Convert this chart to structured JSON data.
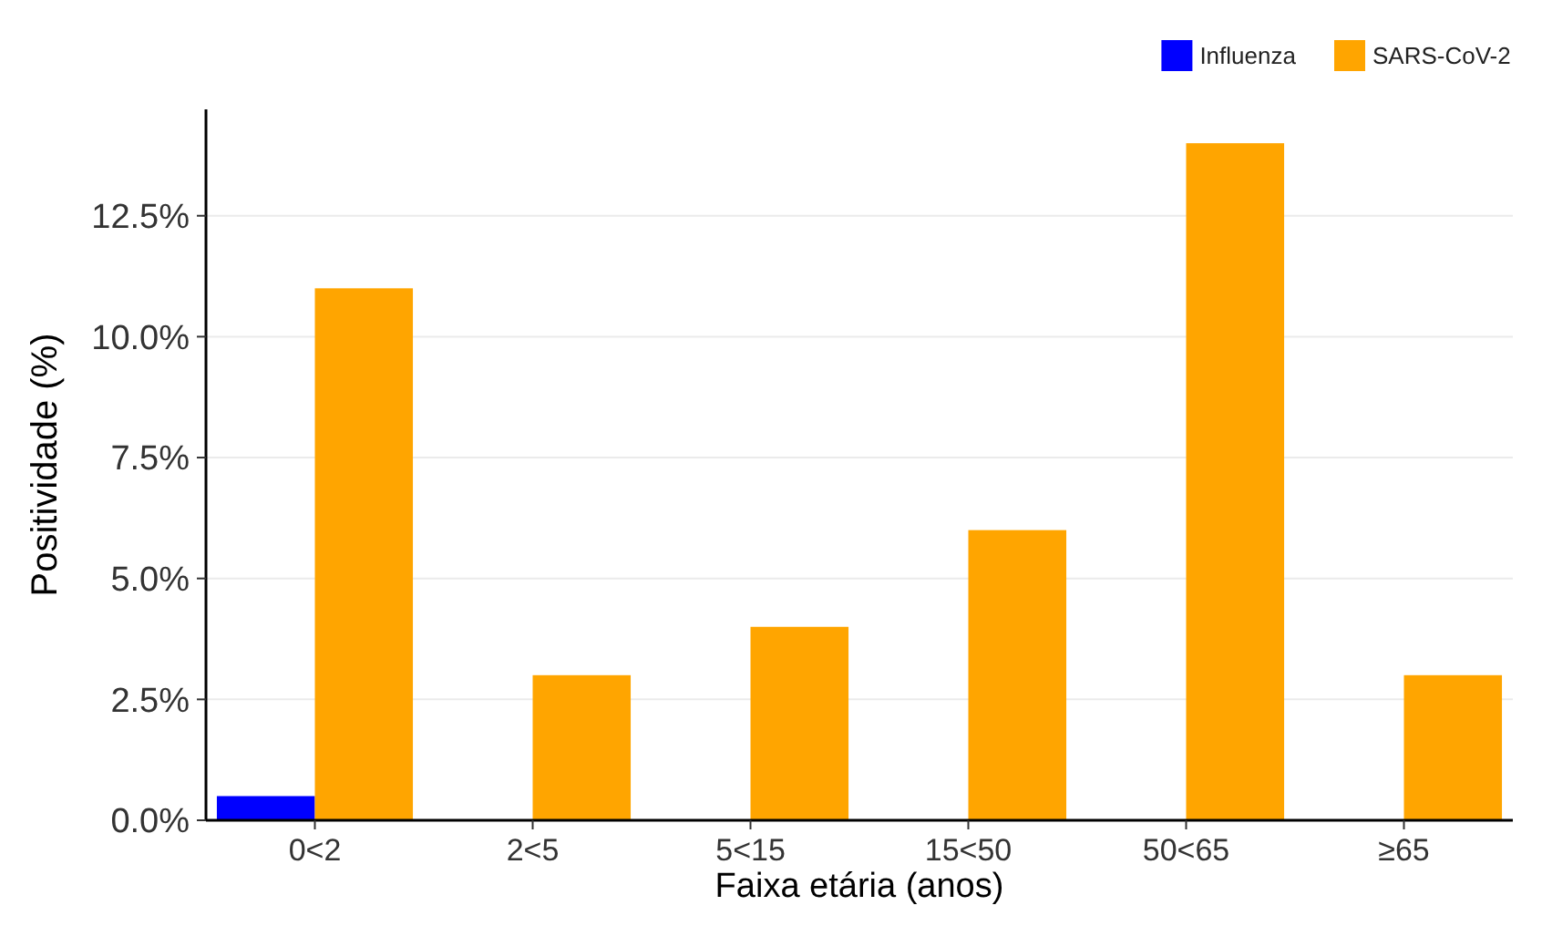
{
  "chart_data": {
    "type": "bar",
    "xlabel": "Faixa etária (anos)",
    "ylabel": "Positividade (%)",
    "categories": [
      "0<2",
      "2<5",
      "5<15",
      "15<50",
      "50<65",
      "≥65"
    ],
    "series": [
      {
        "name": "Influenza",
        "color": "#0000ff",
        "values": [
          0.5,
          0,
          0,
          0,
          0,
          0
        ]
      },
      {
        "name": "SARS-CoV-2",
        "color": "#ffa500",
        "values": [
          11,
          3,
          4,
          6,
          14,
          3
        ]
      }
    ],
    "ylim": [
      0,
      14.7
    ],
    "yticks": [
      {
        "value": 0,
        "label": "0.0%"
      },
      {
        "value": 2.5,
        "label": "2.5%"
      },
      {
        "value": 5,
        "label": "5.0%"
      },
      {
        "value": 7.5,
        "label": "7.5%"
      },
      {
        "value": 10,
        "label": "10.0%"
      },
      {
        "value": 12.5,
        "label": "12.5%"
      }
    ],
    "grid": "y",
    "legend": "top right"
  }
}
